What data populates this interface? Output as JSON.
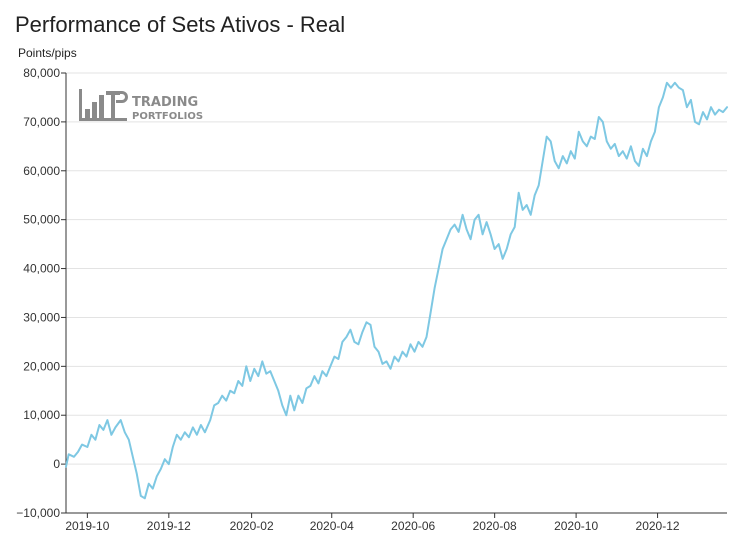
{
  "chart_data": {
    "type": "line",
    "title": "Performance of Sets Ativos - Real",
    "ylabel": "Points/pips",
    "xlabel": "",
    "ylim": [
      -10000,
      80000
    ],
    "xlim": [
      "2019-09-15",
      "2021-01-22"
    ],
    "grid": "horizontal",
    "yticks": [
      -10000,
      0,
      10000,
      20000,
      30000,
      40000,
      50000,
      60000,
      70000,
      80000
    ],
    "ytick_labels": [
      "−10,000",
      "0",
      "10,000",
      "20,000",
      "30,000",
      "40,000",
      "50,000",
      "60,000",
      "70,000",
      "80,000"
    ],
    "xticks": [
      "2019-10-01",
      "2019-12-01",
      "2020-02-01",
      "2020-04-01",
      "2020-06-01",
      "2020-08-01",
      "2020-10-01",
      "2020-12-01"
    ],
    "xtick_labels": [
      "2019-10",
      "2019-12",
      "2020-02",
      "2020-04",
      "2020-06",
      "2020-08",
      "2020-10",
      "2020-12"
    ],
    "series": [
      {
        "color": "#7ec8e3",
        "points": [
          [
            "2019-09-15",
            -500
          ],
          [
            "2019-09-17",
            2000
          ],
          [
            "2019-09-21",
            1500
          ],
          [
            "2019-09-24",
            2500
          ],
          [
            "2019-09-27",
            4000
          ],
          [
            "2019-10-01",
            3500
          ],
          [
            "2019-10-04",
            6000
          ],
          [
            "2019-10-07",
            5000
          ],
          [
            "2019-10-10",
            8000
          ],
          [
            "2019-10-13",
            7000
          ],
          [
            "2019-10-16",
            9000
          ],
          [
            "2019-10-19",
            6000
          ],
          [
            "2019-10-22",
            7500
          ],
          [
            "2019-10-26",
            9000
          ],
          [
            "2019-10-29",
            6500
          ],
          [
            "2019-11-01",
            5000
          ],
          [
            "2019-11-04",
            1500
          ],
          [
            "2019-11-07",
            -2000
          ],
          [
            "2019-11-10",
            -6500
          ],
          [
            "2019-11-13",
            -7000
          ],
          [
            "2019-11-16",
            -4000
          ],
          [
            "2019-11-19",
            -5000
          ],
          [
            "2019-11-22",
            -2500
          ],
          [
            "2019-11-25",
            -1000
          ],
          [
            "2019-11-28",
            1000
          ],
          [
            "2019-12-01",
            0
          ],
          [
            "2019-12-04",
            3500
          ],
          [
            "2019-12-07",
            6000
          ],
          [
            "2019-12-10",
            5000
          ],
          [
            "2019-12-13",
            6500
          ],
          [
            "2019-12-16",
            5500
          ],
          [
            "2019-12-19",
            7500
          ],
          [
            "2019-12-22",
            6000
          ],
          [
            "2019-12-25",
            8000
          ],
          [
            "2019-12-28",
            6500
          ],
          [
            "2020-01-01",
            9000
          ],
          [
            "2020-01-04",
            12000
          ],
          [
            "2020-01-07",
            12500
          ],
          [
            "2020-01-10",
            14000
          ],
          [
            "2020-01-13",
            13000
          ],
          [
            "2020-01-16",
            15000
          ],
          [
            "2020-01-19",
            14500
          ],
          [
            "2020-01-22",
            17000
          ],
          [
            "2020-01-25",
            16000
          ],
          [
            "2020-01-28",
            20000
          ],
          [
            "2020-01-31",
            17000
          ],
          [
            "2020-02-03",
            19500
          ],
          [
            "2020-02-06",
            18000
          ],
          [
            "2020-02-09",
            21000
          ],
          [
            "2020-02-12",
            18500
          ],
          [
            "2020-02-15",
            19000
          ],
          [
            "2020-02-18",
            17000
          ],
          [
            "2020-02-21",
            15000
          ],
          [
            "2020-02-24",
            12000
          ],
          [
            "2020-02-27",
            10000
          ],
          [
            "2020-03-01",
            14000
          ],
          [
            "2020-03-04",
            11000
          ],
          [
            "2020-03-07",
            14000
          ],
          [
            "2020-03-10",
            12500
          ],
          [
            "2020-03-13",
            15500
          ],
          [
            "2020-03-16",
            16000
          ],
          [
            "2020-03-19",
            18000
          ],
          [
            "2020-03-22",
            16500
          ],
          [
            "2020-03-25",
            19000
          ],
          [
            "2020-03-28",
            18000
          ],
          [
            "2020-03-31",
            20000
          ],
          [
            "2020-04-03",
            22000
          ],
          [
            "2020-04-06",
            21500
          ],
          [
            "2020-04-09",
            25000
          ],
          [
            "2020-04-12",
            26000
          ],
          [
            "2020-04-15",
            27500
          ],
          [
            "2020-04-18",
            25000
          ],
          [
            "2020-04-21",
            24500
          ],
          [
            "2020-04-24",
            27000
          ],
          [
            "2020-04-27",
            29000
          ],
          [
            "2020-04-30",
            28500
          ],
          [
            "2020-05-03",
            24000
          ],
          [
            "2020-05-06",
            23000
          ],
          [
            "2020-05-09",
            20500
          ],
          [
            "2020-05-12",
            21000
          ],
          [
            "2020-05-15",
            19500
          ],
          [
            "2020-05-18",
            22000
          ],
          [
            "2020-05-21",
            21000
          ],
          [
            "2020-05-24",
            23000
          ],
          [
            "2020-05-27",
            22000
          ],
          [
            "2020-05-30",
            24500
          ],
          [
            "2020-06-02",
            23000
          ],
          [
            "2020-06-05",
            25000
          ],
          [
            "2020-06-08",
            24000
          ],
          [
            "2020-06-11",
            26000
          ],
          [
            "2020-06-14",
            31000
          ],
          [
            "2020-06-17",
            36000
          ],
          [
            "2020-06-20",
            40000
          ],
          [
            "2020-06-23",
            44000
          ],
          [
            "2020-06-26",
            46000
          ],
          [
            "2020-06-29",
            48000
          ],
          [
            "2020-07-02",
            49000
          ],
          [
            "2020-07-05",
            47500
          ],
          [
            "2020-07-08",
            51000
          ],
          [
            "2020-07-11",
            48000
          ],
          [
            "2020-07-14",
            46000
          ],
          [
            "2020-07-17",
            50000
          ],
          [
            "2020-07-20",
            51000
          ],
          [
            "2020-07-23",
            47000
          ],
          [
            "2020-07-26",
            49500
          ],
          [
            "2020-07-29",
            47000
          ],
          [
            "2020-08-01",
            44000
          ],
          [
            "2020-08-04",
            45000
          ],
          [
            "2020-08-07",
            42000
          ],
          [
            "2020-08-10",
            44000
          ],
          [
            "2020-08-13",
            47000
          ],
          [
            "2020-08-16",
            48500
          ],
          [
            "2020-08-19",
            55500
          ],
          [
            "2020-08-22",
            52000
          ],
          [
            "2020-08-25",
            53000
          ],
          [
            "2020-08-28",
            51000
          ],
          [
            "2020-08-31",
            55000
          ],
          [
            "2020-09-03",
            57000
          ],
          [
            "2020-09-06",
            62000
          ],
          [
            "2020-09-09",
            67000
          ],
          [
            "2020-09-12",
            66000
          ],
          [
            "2020-09-15",
            62000
          ],
          [
            "2020-09-18",
            60500
          ],
          [
            "2020-09-21",
            63000
          ],
          [
            "2020-09-24",
            61500
          ],
          [
            "2020-09-27",
            64000
          ],
          [
            "2020-09-30",
            62500
          ],
          [
            "2020-10-03",
            68000
          ],
          [
            "2020-10-06",
            66000
          ],
          [
            "2020-10-09",
            65000
          ],
          [
            "2020-10-12",
            67000
          ],
          [
            "2020-10-15",
            66500
          ],
          [
            "2020-10-18",
            71000
          ],
          [
            "2020-10-21",
            70000
          ],
          [
            "2020-10-24",
            66000
          ],
          [
            "2020-10-27",
            64500
          ],
          [
            "2020-10-30",
            65500
          ],
          [
            "2020-11-02",
            63000
          ],
          [
            "2020-11-05",
            64000
          ],
          [
            "2020-11-08",
            62500
          ],
          [
            "2020-11-11",
            65000
          ],
          [
            "2020-11-14",
            62000
          ],
          [
            "2020-11-17",
            61000
          ],
          [
            "2020-11-20",
            64500
          ],
          [
            "2020-11-23",
            63000
          ],
          [
            "2020-11-26",
            66000
          ],
          [
            "2020-11-29",
            68000
          ],
          [
            "2020-12-02",
            73000
          ],
          [
            "2020-12-05",
            75000
          ],
          [
            "2020-12-08",
            78000
          ],
          [
            "2020-12-11",
            77000
          ],
          [
            "2020-12-14",
            78000
          ],
          [
            "2020-12-17",
            77000
          ],
          [
            "2020-12-20",
            76500
          ],
          [
            "2020-12-23",
            73000
          ],
          [
            "2020-12-26",
            74500
          ],
          [
            "2020-12-29",
            70000
          ],
          [
            "2021-01-01",
            69500
          ],
          [
            "2021-01-04",
            72000
          ],
          [
            "2021-01-07",
            70500
          ],
          [
            "2021-01-10",
            73000
          ],
          [
            "2021-01-13",
            71500
          ],
          [
            "2021-01-16",
            72500
          ],
          [
            "2021-01-19",
            72000
          ],
          [
            "2021-01-22",
            73000
          ]
        ]
      }
    ]
  },
  "logo": {
    "line1": "TRADING",
    "line2": "PORTFOLIOS"
  }
}
